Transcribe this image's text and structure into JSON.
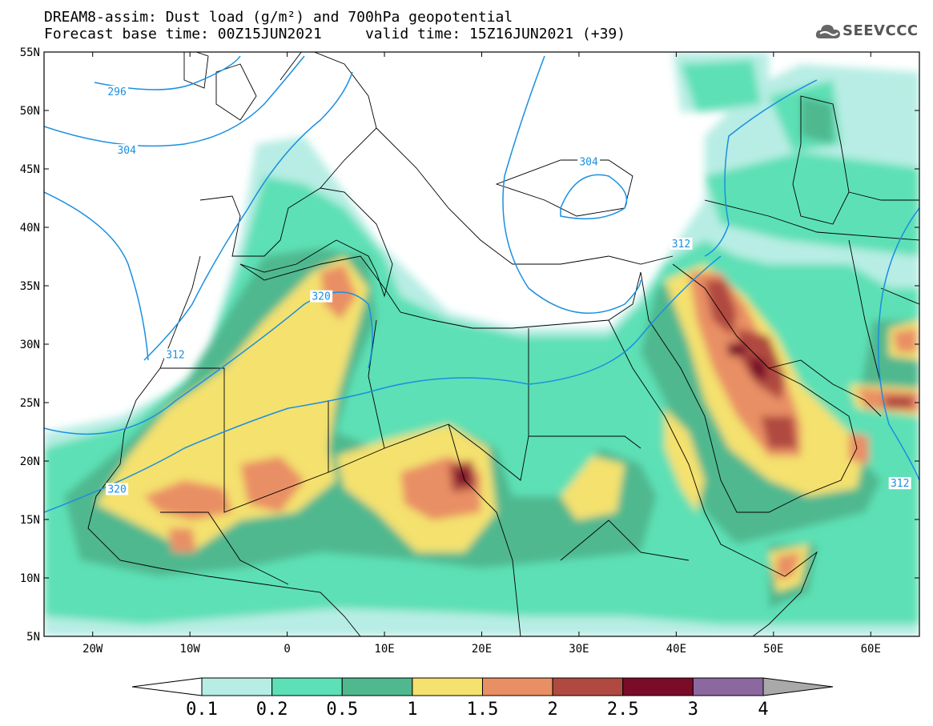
{
  "header": {
    "title_line1": "DREAM8-assim: Dust load (g/m²) and 700hPa geopotential",
    "title_line2": "Forecast base time: 00Z15JUN2021     valid time: 15Z16JUN2021 (+39)"
  },
  "logo": {
    "text": "SEEVCCC",
    "icon": "cloud-logo-icon"
  },
  "map": {
    "lon_range": [
      -25,
      65
    ],
    "lat_range": [
      5,
      55
    ],
    "lat_ticks": [
      {
        "value": 55,
        "label": "55N"
      },
      {
        "value": 50,
        "label": "50N"
      },
      {
        "value": 45,
        "label": "45N"
      },
      {
        "value": 40,
        "label": "40N"
      },
      {
        "value": 35,
        "label": "35N"
      },
      {
        "value": 30,
        "label": "30N"
      },
      {
        "value": 25,
        "label": "25N"
      },
      {
        "value": 20,
        "label": "20N"
      },
      {
        "value": 15,
        "label": "15N"
      },
      {
        "value": 10,
        "label": "10N"
      },
      {
        "value": 5,
        "label": "5N"
      }
    ],
    "lon_ticks": [
      {
        "value": -20,
        "label": "20W"
      },
      {
        "value": -10,
        "label": "10W"
      },
      {
        "value": 0,
        "label": "0"
      },
      {
        "value": 10,
        "label": "10E"
      },
      {
        "value": 20,
        "label": "20E"
      },
      {
        "value": 30,
        "label": "30E"
      },
      {
        "value": 40,
        "label": "40E"
      },
      {
        "value": 50,
        "label": "50E"
      },
      {
        "value": 60,
        "label": "60E"
      }
    ],
    "contour_labels": [
      {
        "text": "296",
        "lon": -17.5,
        "lat": 51.5
      },
      {
        "text": "304",
        "lon": -16.5,
        "lat": 46.5
      },
      {
        "text": "304",
        "lon": 31.0,
        "lat": 45.5
      },
      {
        "text": "312",
        "lon": -11.5,
        "lat": 29.0
      },
      {
        "text": "312",
        "lon": 40.5,
        "lat": 38.5
      },
      {
        "text": "312",
        "lon": 63.0,
        "lat": 18.0
      },
      {
        "text": "320",
        "lon": 3.5,
        "lat": 34.0
      },
      {
        "text": "320",
        "lon": -17.5,
        "lat": 17.5
      }
    ]
  },
  "colorbar": {
    "colors": [
      "#ffffff",
      "#b7ede4",
      "#5de0b5",
      "#50b88f",
      "#f4e16e",
      "#e98f65",
      "#b04a40",
      "#7a0c2a",
      "#8b689f",
      "#a9a9a9"
    ],
    "labels": [
      "0.1",
      "0.2",
      "0.5",
      "1",
      "1.5",
      "2",
      "2.5",
      "3",
      "4"
    ]
  }
}
